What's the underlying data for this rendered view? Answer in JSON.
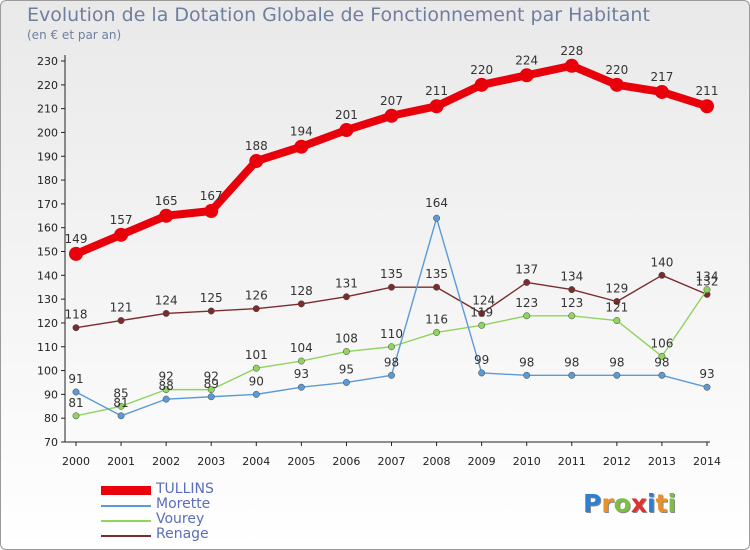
{
  "header": {
    "title": "Evolution de la Dotation Globale de Fonctionnement par Habitant",
    "subtitle": "(en € et par an)"
  },
  "logo": {
    "letters": [
      "P",
      "r",
      "o",
      "x",
      "i",
      "t",
      "i"
    ],
    "colors": [
      "#2f7fd0",
      "#e8902a",
      "#7cc043",
      "#e03030",
      "#2f7fd0",
      "#e8902a",
      "#7cc043"
    ]
  },
  "chart_data": {
    "type": "line",
    "title": "Evolution de la Dotation Globale de Fonctionnement par Habitant",
    "subtitle": "(en € et par an)",
    "x": [
      "2000",
      "2001",
      "2002",
      "2003",
      "2004",
      "2005",
      "2006",
      "2007",
      "2008",
      "2009",
      "2010",
      "2011",
      "2012",
      "2013",
      "2014"
    ],
    "ylim": [
      70,
      230
    ],
    "yticks": [
      70,
      80,
      90,
      100,
      110,
      120,
      130,
      140,
      150,
      160,
      170,
      180,
      190,
      200,
      210,
      220,
      230
    ],
    "grid": false,
    "legend_position": "bottom-left",
    "series": [
      {
        "name": "TULLINS",
        "color": "#e8000b",
        "values": [
          149,
          157,
          165,
          167,
          188,
          194,
          201,
          207,
          211,
          220,
          224,
          228,
          220,
          217,
          211
        ],
        "labels": [
          "149",
          "157",
          "165",
          "167",
          "188",
          "194",
          "201",
          "207",
          "211",
          "220",
          "224",
          "228",
          "220",
          "217",
          "211"
        ]
      },
      {
        "name": "Morette",
        "color": "#5b9bd5",
        "values": [
          91,
          81,
          88,
          89,
          90,
          93,
          95,
          98,
          164,
          99,
          98,
          98,
          98,
          98,
          93
        ],
        "labels": [
          "91",
          "81",
          "88",
          "89",
          "90",
          "93",
          "95",
          "98",
          "164",
          "99",
          "98",
          "98",
          "98",
          "98",
          "93"
        ]
      },
      {
        "name": "Vourey",
        "color": "#8fd45f",
        "values": [
          81,
          85,
          92,
          92,
          101,
          104,
          108,
          110,
          116,
          119,
          123,
          123,
          121,
          106,
          134
        ],
        "labels": [
          "81",
          "85",
          "92",
          "92",
          "101",
          "104",
          "108",
          "110",
          "116",
          "119",
          "123",
          "123",
          "121",
          "106",
          "134"
        ]
      },
      {
        "name": "Renage",
        "color": "#7b2d2d",
        "values": [
          118,
          121,
          124,
          125,
          126,
          128,
          131,
          135,
          135,
          124,
          137,
          134,
          129,
          140,
          132
        ],
        "labels": [
          "118",
          "121",
          "124",
          "125",
          "126",
          "128",
          "131",
          "135",
          "135",
          "124",
          "137",
          "134",
          "129",
          "140",
          "132"
        ]
      }
    ]
  }
}
